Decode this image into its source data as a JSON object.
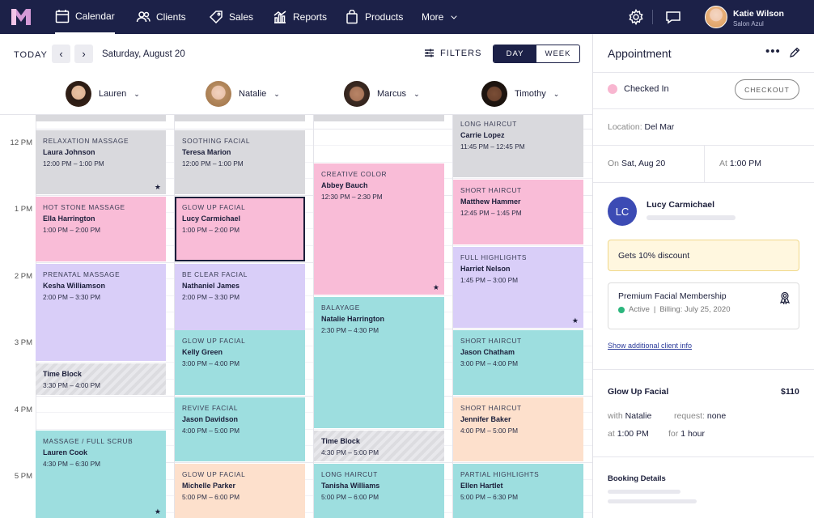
{
  "nav": {
    "calendar": "Calendar",
    "clients": "Clients",
    "sales": "Sales",
    "reports": "Reports",
    "products": "Products",
    "more": "More",
    "calendar_day": "31"
  },
  "user": {
    "name": "Katie Wilson",
    "salon": "Salon Azul"
  },
  "toolbar": {
    "today": "TODAY",
    "date": "Saturday, August 20",
    "filters": "FILTERS",
    "day": "DAY",
    "week": "WEEK"
  },
  "staff": [
    "Lauren",
    "Natalie",
    "Marcus",
    "Timothy"
  ],
  "hours": [
    "12 PM",
    "1 PM",
    "2 PM",
    "3 PM",
    "4 PM",
    "5 PM"
  ],
  "columns": [
    [
      {
        "service": "Relaxation Massage",
        "client": "Laura Johnson",
        "time": "12:00 PM – 1:00 PM",
        "color": "#d9d9dd",
        "star": true
      },
      {
        "service": "Hot Stone Massage",
        "client": "Ella Harrington",
        "time": "1:00 PM – 2:00 PM",
        "color": "#f9bcd7"
      },
      {
        "service": "Prenatal Massage",
        "client": "Kesha Williamson",
        "time": "2:00 PM – 3:30 PM",
        "color": "#d9cef8"
      },
      {
        "service": "",
        "client": "Time Block",
        "time": "3:30 PM – 4:00 PM",
        "color": "block"
      },
      {
        "service": "Massage / Full Scrub",
        "client": "Lauren Cook",
        "time": "4:30 PM – 6:30 PM",
        "color": "#9ddedf",
        "star": true
      }
    ],
    [
      {
        "service": "Soothing Facial",
        "client": "Teresa Marion",
        "time": "12:00 PM – 1:00 PM",
        "color": "#d9d9dd"
      },
      {
        "service": "Glow Up Facial",
        "client": "Lucy Carmichael",
        "time": "1:00 PM – 2:00 PM",
        "color": "#f9bcd7",
        "selected": true
      },
      {
        "service": "Be Clear Facial",
        "client": "Nathaniel James",
        "time": "2:00 PM – 3:30 PM",
        "color": "#d9cef8"
      },
      {
        "service": "Glow Up Facial",
        "client": "Kelly Green",
        "time": "3:00 PM – 4:00 PM",
        "color": "#9ddedf"
      },
      {
        "service": "Revive Facial",
        "client": "Jason Davidson",
        "time": "4:00 PM – 5:00 PM",
        "color": "#9ddedf"
      },
      {
        "service": "Glow Up Facial",
        "client": "Michelle Parker",
        "time": "5:00 PM – 6:00 PM",
        "color": "#fde0cc"
      }
    ],
    [
      {
        "service": "Creative Color",
        "client": "Abbey Bauch",
        "time": "12:30 PM – 2:30 PM",
        "color": "#f9bcd7",
        "star": true
      },
      {
        "service": "Balayage",
        "client": "Natalie Harrington",
        "time": "2:30 PM – 4:30 PM",
        "color": "#9ddedf"
      },
      {
        "service": "",
        "client": "Time Block",
        "time": "4:30 PM – 5:00 PM",
        "color": "block"
      },
      {
        "service": "Long Haircut",
        "client": "Tanisha Williams",
        "time": "5:00 PM – 6:00 PM",
        "color": "#9ddedf"
      }
    ],
    [
      {
        "service": "Long Haircut",
        "client": "Carrie Lopez",
        "time": "11:45 PM – 12:45 PM",
        "color": "#d9d9dd"
      },
      {
        "service": "Short Haircut",
        "client": "Matthew Hammer",
        "time": "12:45 PM – 1:45 PM",
        "color": "#f9bcd7"
      },
      {
        "service": "Full Highlights",
        "client": "Harriet Nelson",
        "time": "1:45 PM – 3:00 PM",
        "color": "#d9cef8",
        "star": true
      },
      {
        "service": "Short Haircut",
        "client": "Jason Chatham",
        "time": "3:00 PM – 4:00 PM",
        "color": "#9ddedf"
      },
      {
        "service": "Short Haircut",
        "client": "Jennifer Baker",
        "time": "4:00 PM – 5:00 PM",
        "color": "#fde0cc"
      },
      {
        "service": "Partial Highlights",
        "client": "Ellen Hartlet",
        "time": "5:00 PM – 6:30 PM",
        "color": "#9ddedf"
      }
    ]
  ],
  "panel": {
    "title": "Appointment",
    "status": "Checked In",
    "checkout": "CHECKOUT",
    "location_label": "Location:",
    "location": "Del Mar",
    "on_label": "On",
    "date": "Sat, Aug 20",
    "at_label": "At",
    "time": "1:00 PM",
    "initials": "LC",
    "client": "Lucy Carmichael",
    "discount": "Gets 10% discount",
    "membership": "Premium Facial Membership",
    "member_status": "Active",
    "member_billing": "Billing: July 25, 2020",
    "member_sep": "|",
    "more_info": "Show additional client info",
    "service": "Glow Up Facial",
    "price": "$110",
    "with_label": "with",
    "with": "Natalie",
    "request_label": "request:",
    "request": "none",
    "at2_label": "at",
    "at2": "1:00 PM",
    "for_label": "for",
    "duration": "1 hour",
    "booking": "Booking Details"
  }
}
